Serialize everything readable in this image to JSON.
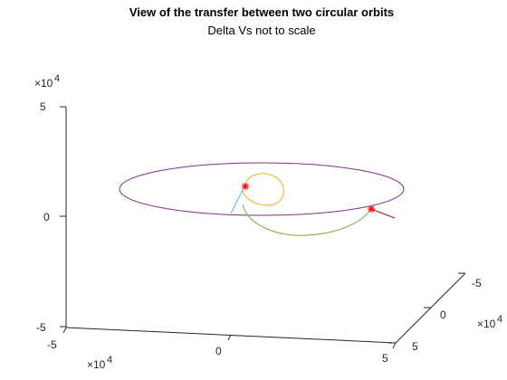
{
  "chart_data": {
    "type": "line",
    "title": "View of the transfer between two circular orbits",
    "subtitle": "Delta Vs not to scale",
    "axes": {
      "z": {
        "ticks": [
          "5",
          "0",
          "-5"
        ],
        "multiplier_base": "×10",
        "multiplier_exp": "4"
      },
      "x": {
        "ticks": [
          "-5",
          "0",
          "5"
        ],
        "multiplier_base": "×10",
        "multiplier_exp": "4"
      },
      "y": {
        "ticks": [
          "-5",
          "0",
          "5"
        ],
        "multiplier_base": "×10",
        "multiplier_exp": "4"
      }
    },
    "series": [
      {
        "color": "#7E2F8E",
        "description": "outer circular orbit",
        "points": [
          [
            -37000,
            4000,
            6000
          ],
          [
            -20000,
            35000,
            6000
          ],
          [
            23000,
            27000,
            6000
          ],
          [
            45000,
            -8000,
            6000
          ],
          [
            20000,
            -35000,
            6000
          ],
          [
            -25000,
            -28000,
            6000
          ]
        ]
      },
      {
        "color": "#EDB120",
        "description": "inner circular orbit",
        "points": [
          [
            -2000,
            5000,
            7500
          ],
          [
            3000,
            3000,
            11000
          ],
          [
            6000,
            -1000,
            7000
          ],
          [
            3000,
            -3000,
            4000
          ],
          [
            -1000,
            1000,
            3500
          ]
        ]
      },
      {
        "color": "#77AC30",
        "description": "transfer arc",
        "points": [
          [
            -1000,
            2000,
            2000
          ],
          [
            16000,
            -5000,
            -6000
          ],
          [
            36000,
            -10000,
            0
          ],
          [
            40000,
            -6000,
            2000
          ]
        ]
      },
      {
        "color": "#4DBEEE",
        "description": "delta-v vector 1",
        "points": [
          [
            -1000,
            2000,
            2000
          ],
          [
            -3000,
            2000,
            0
          ]
        ]
      },
      {
        "color": "#A2142F",
        "description": "delta-v vector 2",
        "points": [
          [
            40000,
            -6000,
            2000
          ],
          [
            48000,
            -6000,
            0
          ]
        ]
      }
    ],
    "markers": [
      {
        "symbol": "*",
        "color": "#FF0000",
        "point": [
          -1000,
          2000,
          2000
        ]
      },
      {
        "symbol": "*",
        "color": "#FF0000",
        "point": [
          40000,
          -6000,
          2000
        ]
      }
    ],
    "xlim": [
      -50000,
      50000
    ],
    "ylim": [
      -50000,
      50000
    ],
    "zlim": [
      -50000,
      50000
    ],
    "grid": false,
    "legend": "none"
  }
}
